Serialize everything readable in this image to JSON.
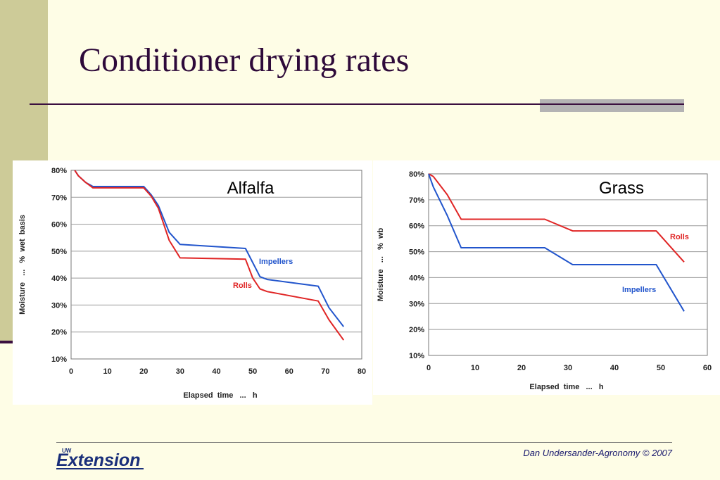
{
  "slide": {
    "title": "Conditioner drying rates",
    "footer_credit": "Dan  Undersander-Agronomy © 2007",
    "logo_text": "Extension",
    "logo_superscript": "UW"
  },
  "colors": {
    "background": "#fefde6",
    "side_band": "#cdcb98",
    "title": "#2e0a3a",
    "impellers": "#2255cc",
    "rolls": "#e02525"
  },
  "chart_data": [
    {
      "type": "line",
      "title": "Alfalfa",
      "xlabel": "Elapsed  time   ...   h",
      "ylabel": "Moisture   ...   %  wet  basis",
      "xlim": [
        0,
        80
      ],
      "ylim": [
        10,
        80
      ],
      "x_ticks": [
        "0",
        "10",
        "20",
        "30",
        "40",
        "50",
        "60",
        "70",
        "80"
      ],
      "y_ticks": [
        "10%",
        "20%",
        "30%",
        "40%",
        "50%",
        "60%",
        "70%",
        "80%"
      ],
      "grid": "horizontal",
      "series": [
        {
          "name": "Impellers",
          "color": "#2255cc",
          "points": [
            [
              1,
              80
            ],
            [
              2,
              78
            ],
            [
              4,
              75.5
            ],
            [
              6,
              74
            ],
            [
              20,
              74
            ],
            [
              22,
              71
            ],
            [
              24,
              67
            ],
            [
              27,
              57
            ],
            [
              30,
              52.5
            ],
            [
              48,
              51
            ],
            [
              52,
              40.5
            ],
            [
              54,
              39.5
            ],
            [
              68,
              37
            ],
            [
              71,
              29
            ],
            [
              75,
              22
            ]
          ]
        },
        {
          "name": "Rolls",
          "color": "#e02525",
          "points": [
            [
              1,
              80
            ],
            [
              2,
              78
            ],
            [
              4,
              75.5
            ],
            [
              6,
              73.5
            ],
            [
              20,
              73.5
            ],
            [
              22,
              70.5
            ],
            [
              24,
              66
            ],
            [
              27,
              54
            ],
            [
              30,
              47.5
            ],
            [
              48,
              47
            ],
            [
              50,
              40
            ],
            [
              52,
              36
            ],
            [
              54,
              35
            ],
            [
              68,
              31.5
            ],
            [
              71,
              24.5
            ],
            [
              75,
              17
            ]
          ]
        }
      ]
    },
    {
      "type": "line",
      "title": "Grass",
      "xlabel": "Elapsed  time   ...   h",
      "ylabel": "Moisture   ...   %  wb",
      "xlim": [
        0,
        60
      ],
      "ylim": [
        10,
        80
      ],
      "x_ticks": [
        "0",
        "10",
        "20",
        "30",
        "40",
        "50",
        "60"
      ],
      "y_ticks": [
        "10%",
        "20%",
        "30%",
        "40%",
        "50%",
        "60%",
        "70%",
        "80%"
      ],
      "grid": "horizontal",
      "series": [
        {
          "name": "Rolls",
          "color": "#e02525",
          "points": [
            [
              0,
              80
            ],
            [
              1,
              79
            ],
            [
              4,
              72
            ],
            [
              7,
              62.5
            ],
            [
              25,
              62.5
            ],
            [
              31,
              58
            ],
            [
              49,
              58
            ],
            [
              55,
              46
            ]
          ]
        },
        {
          "name": "Impellers",
          "color": "#2255cc",
          "points": [
            [
              0,
              80
            ],
            [
              1,
              75
            ],
            [
              4,
              64
            ],
            [
              7,
              51.5
            ],
            [
              25,
              51.5
            ],
            [
              31,
              45
            ],
            [
              49,
              45
            ],
            [
              55,
              27
            ]
          ]
        }
      ]
    }
  ]
}
